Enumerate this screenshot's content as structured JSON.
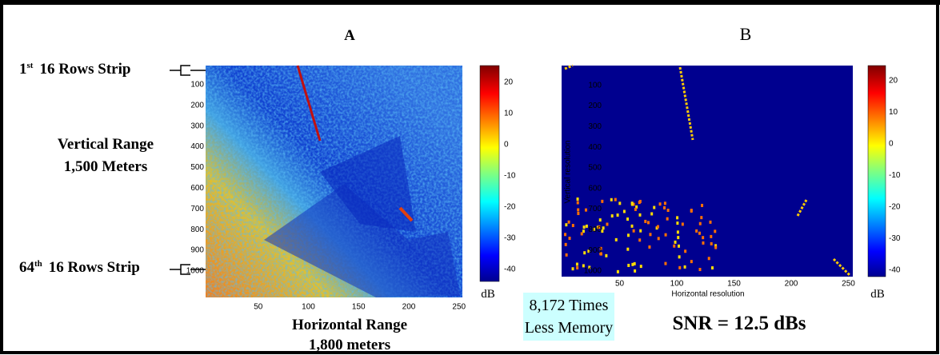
{
  "panels": [
    {
      "title": "A",
      "xticks": [
        50,
        100,
        150,
        200,
        250
      ],
      "yticks": [
        100,
        200,
        300,
        400,
        500,
        600,
        700,
        800,
        900,
        1000
      ],
      "colorbar_ticks": [
        20,
        10,
        0,
        -10,
        -20,
        -30,
        -40
      ],
      "colorbar_unit": "dB"
    },
    {
      "title": "B",
      "xlabel": "Horizontal resolution",
      "ylabel": "Vertical resolution",
      "xticks": [
        50,
        100,
        150,
        200,
        250
      ],
      "yticks": [
        100,
        200,
        300,
        400,
        500,
        600,
        700,
        800,
        900,
        1000
      ],
      "colorbar_ticks": [
        20,
        10,
        0,
        -10,
        -20,
        -30,
        -40
      ],
      "colorbar_unit": "dB"
    }
  ],
  "annotations": {
    "first_strip": {
      "number": "1",
      "suffix": "st",
      "text": "16 Rows Strip"
    },
    "last_strip": {
      "number": "64",
      "suffix": "th",
      "text": "16 Rows Strip"
    },
    "vertical_range": [
      "Vertical Range",
      "1,500 Meters"
    ],
    "horizontal_range": [
      "Horizontal Range",
      "1,800 meters"
    ],
    "memory": [
      "8,172 Times",
      "Less Memory"
    ],
    "snr": "SNR = 12.5 dBs"
  }
}
